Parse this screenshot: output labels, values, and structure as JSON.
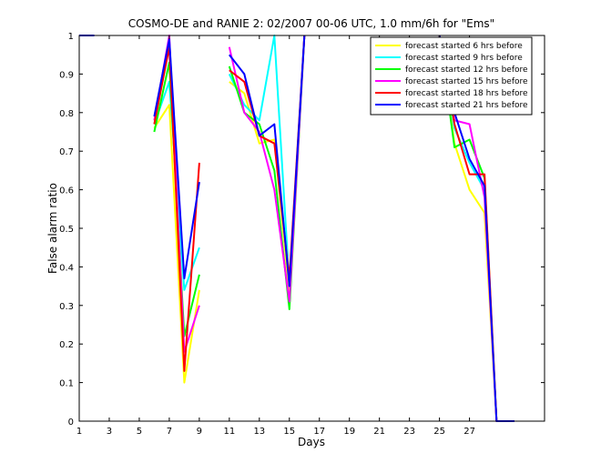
{
  "chart_data": {
    "type": "line",
    "title": "COSMO-DE and RANIE 2: 02/2007 00-06 UTC, 1.0 mm/6h for \"Ems\"",
    "xlabel": "Days",
    "ylabel": "False alarm ratio",
    "xlim": [
      1,
      32
    ],
    "ylim": [
      0,
      1
    ],
    "xticks": [
      "1",
      "3",
      "5",
      "7",
      "9",
      "11",
      "13",
      "15",
      "17",
      "19",
      "21",
      "23",
      "25",
      "27"
    ],
    "yticks": [
      "0",
      "0.1",
      "0.2",
      "0.3",
      "0.4",
      "0.5",
      "0.6",
      "0.7",
      "0.8",
      "0.9",
      "1"
    ],
    "legend_position": "top-right",
    "series": [
      {
        "name": "forecast started 6 hrs before",
        "color": "#ffff00",
        "segments": [
          [
            [
              1,
              1
            ],
            [
              2,
              1
            ]
          ],
          [
            [
              6,
              0.76
            ],
            [
              7,
              0.82
            ],
            [
              8,
              0.1
            ],
            [
              9,
              0.34
            ]
          ],
          [
            [
              11,
              0.88
            ],
            [
              12,
              0.85
            ],
            [
              13,
              0.72
            ],
            [
              14,
              0.73
            ],
            [
              15,
              0.33
            ],
            [
              16,
              1
            ]
          ],
          [
            [
              25,
              1
            ],
            [
              26,
              0.72
            ],
            [
              27,
              0.6
            ],
            [
              28,
              0.54
            ],
            [
              28.8,
              0
            ],
            [
              30,
              0
            ]
          ]
        ]
      },
      {
        "name": "forecast started 9 hrs before",
        "color": "#00ffff",
        "segments": [
          [
            [
              1,
              1
            ],
            [
              2,
              1
            ]
          ],
          [
            [
              6,
              0.77
            ],
            [
              7,
              0.88
            ],
            [
              8,
              0.34
            ],
            [
              9,
              0.45
            ]
          ],
          [
            [
              11,
              0.9
            ],
            [
              12,
              0.82
            ],
            [
              13,
              0.78
            ],
            [
              14,
              1
            ],
            [
              15,
              0.35
            ],
            [
              16,
              1
            ]
          ],
          [
            [
              25,
              1
            ],
            [
              26,
              0.76
            ],
            [
              27,
              0.67
            ],
            [
              28,
              0.6
            ],
            [
              28.8,
              0
            ],
            [
              30,
              0
            ]
          ]
        ]
      },
      {
        "name": "forecast started 12 hrs before",
        "color": "#00ff00",
        "segments": [
          [
            [
              1,
              1
            ],
            [
              2,
              1
            ]
          ],
          [
            [
              6,
              0.75
            ],
            [
              7,
              0.93
            ],
            [
              8,
              0.22
            ],
            [
              9,
              0.38
            ]
          ],
          [
            [
              11,
              0.92
            ],
            [
              12,
              0.8
            ],
            [
              13,
              0.77
            ],
            [
              14,
              0.65
            ],
            [
              15,
              0.29
            ],
            [
              16,
              1
            ]
          ],
          [
            [
              25,
              1
            ],
            [
              26,
              0.71
            ],
            [
              27,
              0.73
            ],
            [
              28,
              0.63
            ],
            [
              28.8,
              0
            ],
            [
              30,
              0
            ]
          ]
        ]
      },
      {
        "name": "forecast started 15 hrs before",
        "color": "#ff00ff",
        "segments": [
          [
            [
              1,
              1
            ],
            [
              2,
              1
            ]
          ],
          [
            [
              6,
              0.78
            ],
            [
              7,
              1
            ],
            [
              8,
              0.18
            ],
            [
              9,
              0.3
            ]
          ],
          [
            [
              11,
              0.97
            ],
            [
              12,
              0.8
            ],
            [
              13,
              0.75
            ],
            [
              14,
              0.6
            ],
            [
              15,
              0.31
            ],
            [
              16,
              1
            ]
          ],
          [
            [
              25,
              1
            ],
            [
              26,
              0.78
            ],
            [
              27,
              0.77
            ],
            [
              28,
              0.58
            ],
            [
              28.8,
              0
            ],
            [
              30,
              0
            ]
          ]
        ]
      },
      {
        "name": "forecast started 18 hrs before",
        "color": "#ff0000",
        "segments": [
          [
            [
              1,
              1
            ],
            [
              2,
              1
            ]
          ],
          [
            [
              6,
              0.77
            ],
            [
              7,
              0.97
            ],
            [
              8,
              0.13
            ],
            [
              9,
              0.67
            ]
          ],
          [
            [
              11,
              0.91
            ],
            [
              12,
              0.88
            ],
            [
              13,
              0.74
            ],
            [
              14,
              0.72
            ],
            [
              15,
              0.37
            ],
            [
              16,
              1
            ]
          ],
          [
            [
              25,
              1
            ],
            [
              26,
              0.77
            ],
            [
              27,
              0.64
            ],
            [
              28,
              0.64
            ],
            [
              28.8,
              0
            ],
            [
              30,
              0
            ]
          ]
        ]
      },
      {
        "name": "forecast started 21 hrs before",
        "color": "#0000ff",
        "segments": [
          [
            [
              1,
              1
            ],
            [
              2,
              1
            ]
          ],
          [
            [
              6,
              0.79
            ],
            [
              7,
              0.99
            ],
            [
              8,
              0.37
            ],
            [
              9,
              0.62
            ]
          ],
          [
            [
              11,
              0.95
            ],
            [
              12,
              0.9
            ],
            [
              13,
              0.74
            ],
            [
              14,
              0.77
            ],
            [
              15,
              0.35
            ],
            [
              16,
              1
            ]
          ],
          [
            [
              25,
              1
            ],
            [
              26,
              0.8
            ],
            [
              27,
              0.68
            ],
            [
              28,
              0.61
            ],
            [
              28.8,
              0
            ],
            [
              30,
              0
            ]
          ]
        ]
      }
    ]
  }
}
